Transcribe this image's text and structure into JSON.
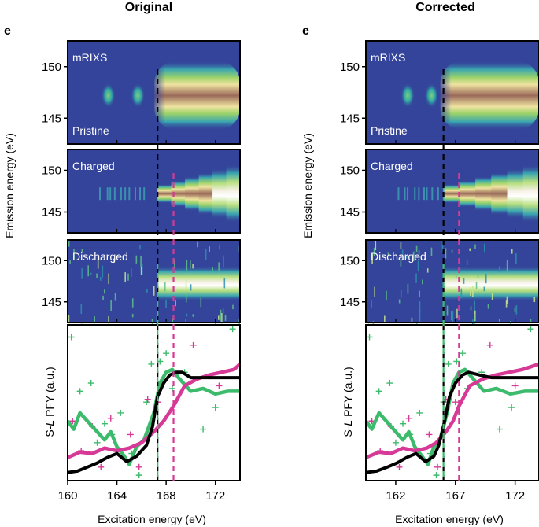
{
  "figure_panel_label": "e",
  "x_axis_label": "Excitation energy (eV)",
  "y_axis_label_emission": "Emission energy (eV)",
  "y_axis_label_pfy_parts": [
    "S-",
    "L",
    " PFY (a.u.)"
  ],
  "colors": {
    "map_background": "#34449a",
    "pristine_curve": "#000000",
    "charged_curve": "#d63a96",
    "discharged_curve": "#3dbb6c",
    "pristine_edge_line": "#000000",
    "charged_edge_line": "#d63a96"
  },
  "chart_data": [
    {
      "type": "heatmap+line",
      "title": "Original",
      "x_ticks": [
        160,
        164,
        168,
        172
      ],
      "x_range": [
        160,
        174
      ],
      "maps": [
        {
          "id": "pristine",
          "labels": [
            "mRIXS",
            "Pristine"
          ],
          "y_ticks": [
            150,
            145
          ],
          "y_range": [
            142.5,
            152.5
          ],
          "features": [
            {
              "center_x": 163.3,
              "center_y": 147.2,
              "kind": "weak-spot"
            },
            {
              "center_x": 165.7,
              "center_y": 147.2,
              "kind": "weak-spot"
            },
            {
              "start_x": 167.3,
              "center_y": 147.2,
              "kind": "intense-band"
            }
          ]
        },
        {
          "id": "charged",
          "labels": [
            "Charged"
          ],
          "y_ticks": [
            150,
            145
          ],
          "y_range": [
            142.5,
            152.5
          ],
          "features": [
            {
              "start_x": 167.3,
              "center_y": 147.2,
              "kind": "intense-band-widening"
            }
          ]
        },
        {
          "id": "discharged",
          "labels": [
            "Discharged"
          ],
          "y_ticks": [
            150,
            145
          ],
          "y_range": [
            142.5,
            152.5
          ],
          "features": [
            {
              "start_x": 167.3,
              "center_y": 147.2,
              "kind": "noisy-band"
            }
          ]
        }
      ],
      "edge_lines": [
        {
          "name": "Pristine edge",
          "x": 167.3,
          "color": "#000000",
          "start_map": 0
        },
        {
          "name": "Charged edge",
          "x": 168.6,
          "color": "#d63a96",
          "start_map": 1
        },
        {
          "name": "Discharged edge",
          "x": 167.3,
          "color": "#3dbb6c",
          "start_map": 2
        }
      ],
      "pfy_series": [
        {
          "id": "pristine",
          "color": "#000000",
          "x": [
            160,
            160.8,
            161.6,
            162.4,
            163.2,
            164.0,
            164.8,
            165.6,
            166.4,
            166.9,
            167.3,
            167.8,
            168.3,
            168.8,
            169.3,
            170,
            171,
            172,
            173,
            174
          ],
          "y": [
            0.06,
            0.07,
            0.1,
            0.13,
            0.17,
            0.2,
            0.14,
            0.18,
            0.26,
            0.4,
            0.62,
            0.72,
            0.78,
            0.8,
            0.8,
            0.76,
            0.76,
            0.76,
            0.76,
            0.76
          ]
        },
        {
          "id": "charged",
          "color": "#d63a96",
          "x": [
            160,
            161,
            162,
            163,
            164,
            165,
            166,
            167,
            167.8,
            168.6,
            169.5,
            170.5,
            171.5,
            172.5,
            173.5,
            174
          ],
          "y": [
            0.17,
            0.21,
            0.2,
            0.24,
            0.22,
            0.24,
            0.28,
            0.36,
            0.44,
            0.55,
            0.7,
            0.75,
            0.78,
            0.8,
            0.82,
            0.86
          ]
        },
        {
          "id": "discharged",
          "color": "#3dbb6c",
          "x": [
            160,
            160.5,
            161,
            162,
            163,
            163.5,
            164,
            164.6,
            165,
            165.6,
            166.2,
            167,
            167.5,
            168,
            168.5,
            169,
            170,
            171,
            172,
            173,
            174
          ],
          "y": [
            0.44,
            0.38,
            0.5,
            0.4,
            0.3,
            0.36,
            0.25,
            0.18,
            0.12,
            0.25,
            0.3,
            0.5,
            0.72,
            0.8,
            0.82,
            0.76,
            0.66,
            0.68,
            0.64,
            0.66,
            0.66
          ]
        }
      ],
      "scatter_points": [
        {
          "series": "discharged",
          "x": [
            160.3,
            161.0,
            161.9,
            162.4,
            163.0,
            163.6,
            164.3,
            165.2,
            165.8,
            166.4,
            166.8,
            167.5,
            168.0,
            168.5,
            169.5,
            171.0,
            172.0,
            173.4
          ],
          "y": [
            1.06,
            0.66,
            0.72,
            0.28,
            0.42,
            0.34,
            0.5,
            0.2,
            0.04,
            0.58,
            0.86,
            0.88,
            0.94,
            0.68,
            0.8,
            0.38,
            0.54,
            1.12
          ]
        },
        {
          "series": "charged",
          "x": [
            160.4,
            161.1,
            162.0,
            162.7,
            163.5,
            164.3,
            165.1,
            165.8,
            166.5,
            167.3,
            170.2,
            172.3
          ],
          "y": [
            0.44,
            0.22,
            0.4,
            0.1,
            0.46,
            0.22,
            0.34,
            0.1,
            0.6,
            0.58,
            1.0,
            0.7
          ]
        }
      ]
    },
    {
      "type": "heatmap+line",
      "title": "Corrected",
      "x_ticks": [
        162,
        167,
        172
      ],
      "x_range": [
        159.5,
        174.0
      ],
      "maps": [
        {
          "id": "pristine",
          "labels": [
            "mRIXS",
            "Pristine"
          ],
          "y_ticks": [
            150,
            145
          ],
          "y_range": [
            142.5,
            152.5
          ],
          "features": [
            {
              "center_x": 163.0,
              "center_y": 147.2,
              "kind": "weak-spot"
            },
            {
              "center_x": 165.0,
              "center_y": 147.2,
              "kind": "weak-spot"
            },
            {
              "start_x": 166.0,
              "center_y": 147.2,
              "kind": "intense-band"
            }
          ]
        },
        {
          "id": "charged",
          "labels": [
            "Charged"
          ],
          "y_ticks": [
            150,
            145
          ],
          "y_range": [
            142.5,
            152.5
          ],
          "features": [
            {
              "start_x": 166.0,
              "center_y": 147.2,
              "kind": "intense-band-widening"
            }
          ]
        },
        {
          "id": "discharged",
          "labels": [
            "Discharged"
          ],
          "y_ticks": [
            150,
            145
          ],
          "y_range": [
            142.5,
            152.5
          ],
          "features": [
            {
              "start_x": 166.0,
              "center_y": 147.2,
              "kind": "noisy-band"
            }
          ]
        }
      ],
      "edge_lines": [
        {
          "name": "Pristine edge",
          "x": 166.0,
          "color": "#000000",
          "start_map": 0
        },
        {
          "name": "Charged edge",
          "x": 167.3,
          "color": "#d63a96",
          "start_map": 1
        },
        {
          "name": "Discharged edge",
          "x": 166.0,
          "color": "#3dbb6c",
          "start_map": 2
        }
      ],
      "pfy_series": [
        {
          "id": "pristine",
          "color": "#000000",
          "x": [
            159.5,
            160.4,
            161.3,
            162.1,
            162.9,
            163.7,
            164.5,
            165.2,
            165.6,
            166.0,
            166.5,
            167.0,
            167.6,
            168.1,
            169,
            170,
            171,
            172,
            173,
            174
          ],
          "y": [
            0.06,
            0.07,
            0.1,
            0.13,
            0.17,
            0.2,
            0.14,
            0.18,
            0.26,
            0.4,
            0.62,
            0.72,
            0.78,
            0.8,
            0.78,
            0.76,
            0.76,
            0.76,
            0.76,
            0.76
          ]
        },
        {
          "id": "charged",
          "color": "#d63a96",
          "x": [
            159.5,
            160.6,
            161.6,
            162.6,
            163.6,
            164.6,
            165.4,
            166.2,
            166.8,
            167.3,
            168.2,
            169.3,
            170.4,
            171.5,
            172.6,
            174
          ],
          "y": [
            0.17,
            0.21,
            0.2,
            0.24,
            0.22,
            0.24,
            0.28,
            0.36,
            0.44,
            0.55,
            0.7,
            0.75,
            0.78,
            0.8,
            0.82,
            0.86
          ]
        },
        {
          "id": "discharged",
          "color": "#3dbb6c",
          "x": [
            159.5,
            160.0,
            160.6,
            161.6,
            162.6,
            163.1,
            163.6,
            164.2,
            164.7,
            165.2,
            165.7,
            166.3,
            166.8,
            167.3,
            167.8,
            168.4,
            169.4,
            170.4,
            171.6,
            172.8,
            174
          ],
          "y": [
            0.44,
            0.38,
            0.5,
            0.4,
            0.3,
            0.36,
            0.25,
            0.18,
            0.12,
            0.25,
            0.3,
            0.5,
            0.72,
            0.8,
            0.82,
            0.76,
            0.66,
            0.68,
            0.64,
            0.66,
            0.66
          ]
        }
      ],
      "scatter_points": [
        {
          "series": "discharged",
          "x": [
            159.8,
            160.6,
            161.5,
            162.0,
            162.6,
            163.2,
            164.0,
            164.9,
            165.4,
            166.0,
            166.4,
            167.1,
            167.6,
            168.0,
            169.2,
            170.7,
            171.7,
            173.3
          ],
          "y": [
            1.06,
            0.66,
            0.72,
            0.28,
            0.42,
            0.34,
            0.5,
            0.2,
            0.04,
            0.58,
            0.86,
            0.88,
            0.94,
            0.68,
            0.8,
            0.38,
            0.54,
            1.12
          ]
        },
        {
          "series": "charged",
          "x": [
            160.0,
            160.7,
            161.6,
            162.3,
            163.1,
            164.0,
            164.8,
            165.5,
            166.2,
            167.0,
            169.9,
            172.0
          ],
          "y": [
            0.44,
            0.22,
            0.4,
            0.1,
            0.46,
            0.22,
            0.34,
            0.1,
            0.6,
            0.58,
            1.0,
            0.7
          ]
        }
      ]
    }
  ]
}
